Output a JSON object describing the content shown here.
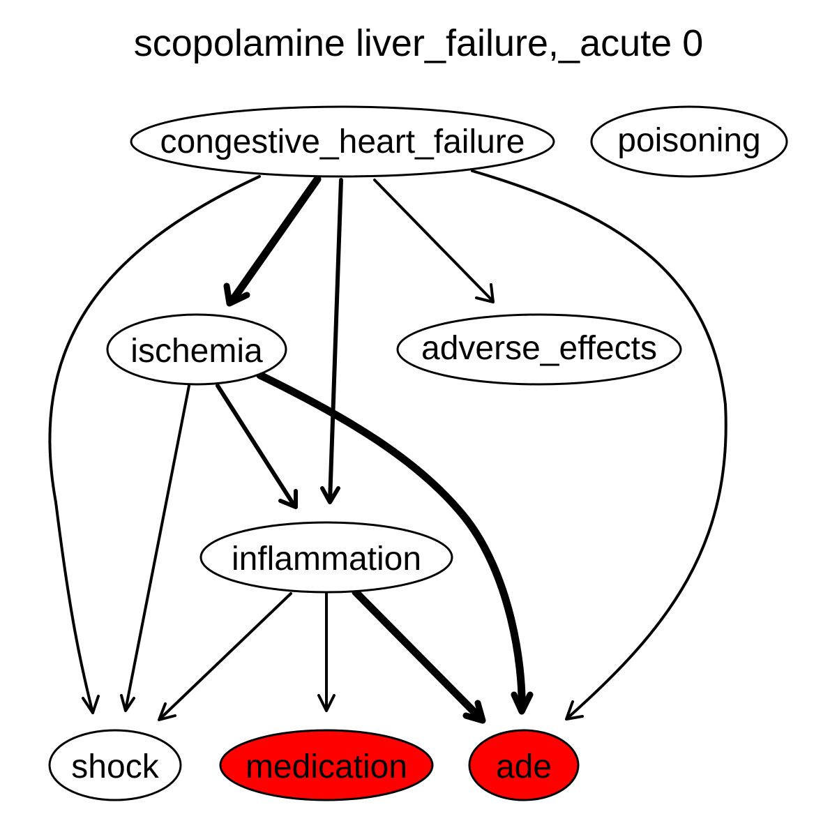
{
  "title": "scopolamine liver_failure,_acute 0",
  "colors": {
    "background": "#ffffff",
    "default_fill": "#ffffff",
    "highlight_fill": "#ff0000",
    "stroke": "#000000"
  },
  "nodes": {
    "congestive_heart_failure": {
      "label": "congestive_heart_failure",
      "highlighted": false
    },
    "poisoning": {
      "label": "poisoning",
      "highlighted": false
    },
    "ischemia": {
      "label": "ischemia",
      "highlighted": false
    },
    "adverse_effects": {
      "label": "adverse_effects",
      "highlighted": false
    },
    "inflammation": {
      "label": "inflammation",
      "highlighted": false
    },
    "shock": {
      "label": "shock",
      "highlighted": false
    },
    "medication": {
      "label": "medication",
      "highlighted": true
    },
    "ade": {
      "label": "ade",
      "highlighted": true
    }
  },
  "edges": [
    {
      "from": "congestive_heart_failure",
      "to": "ischemia",
      "weight": "heavy"
    },
    {
      "from": "congestive_heart_failure",
      "to": "inflammation",
      "weight": "medium"
    },
    {
      "from": "congestive_heart_failure",
      "to": "adverse_effects",
      "weight": "light"
    },
    {
      "from": "congestive_heart_failure",
      "to": "shock",
      "weight": "light"
    },
    {
      "from": "congestive_heart_failure",
      "to": "ade",
      "weight": "light"
    },
    {
      "from": "ischemia",
      "to": "shock",
      "weight": "light"
    },
    {
      "from": "ischemia",
      "to": "inflammation",
      "weight": "medium"
    },
    {
      "from": "ischemia",
      "to": "ade",
      "weight": "heavy"
    },
    {
      "from": "inflammation",
      "to": "shock",
      "weight": "light"
    },
    {
      "from": "inflammation",
      "to": "medication",
      "weight": "light"
    },
    {
      "from": "inflammation",
      "to": "ade",
      "weight": "heavy"
    }
  ]
}
